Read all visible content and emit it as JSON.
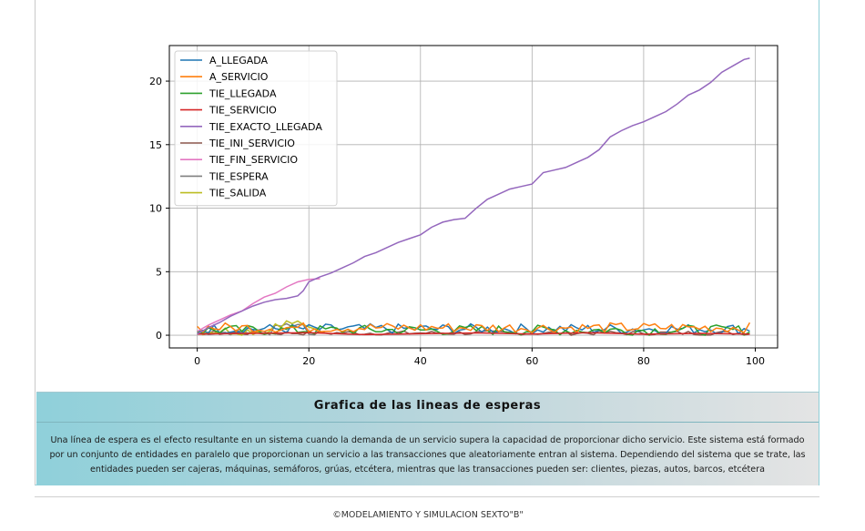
{
  "chart_data": {
    "type": "line",
    "xlim": [
      -5,
      104
    ],
    "ylim": [
      -1,
      22.8
    ],
    "x_ticks": [
      0,
      20,
      40,
      60,
      80,
      100
    ],
    "y_ticks": [
      0,
      5,
      10,
      15,
      20
    ],
    "grid": true,
    "legend_position": "top-left",
    "series": [
      {
        "name": "A_LLEGADA",
        "color": "#1f77b4"
      },
      {
        "name": "A_SERVICIO",
        "color": "#ff7f0e"
      },
      {
        "name": "TIE_LLEGADA",
        "color": "#2ca02c"
      },
      {
        "name": "TIE_SERVICIO",
        "color": "#d62728",
        "x": [
          0,
          10,
          20,
          30,
          40,
          50,
          60,
          70,
          80,
          90,
          99
        ],
        "y": [
          0.1,
          0.15,
          0.2,
          0.05,
          0.12,
          0.18,
          0.1,
          0.2,
          0.08,
          0.15,
          0.1
        ]
      },
      {
        "name": "TIE_EXACTO_LLEGADA",
        "color": "#9467bd",
        "x": [
          0,
          2,
          4,
          6,
          8,
          10,
          12,
          14,
          16,
          18,
          19,
          20,
          22,
          24,
          26,
          28,
          30,
          32,
          34,
          36,
          38,
          40,
          42,
          44,
          46,
          48,
          50,
          52,
          54,
          56,
          58,
          60,
          62,
          64,
          66,
          68,
          70,
          72,
          74,
          76,
          78,
          80,
          82,
          84,
          86,
          88,
          90,
          92,
          94,
          96,
          98,
          99
        ],
        "y": [
          0.1,
          0.6,
          1.0,
          1.5,
          1.9,
          2.3,
          2.6,
          2.8,
          2.9,
          3.1,
          3.5,
          4.2,
          4.6,
          4.9,
          5.3,
          5.7,
          6.2,
          6.5,
          6.9,
          7.3,
          7.6,
          7.9,
          8.5,
          8.9,
          9.1,
          9.2,
          10.0,
          10.7,
          11.1,
          11.5,
          11.7,
          11.9,
          12.8,
          13.0,
          13.2,
          13.6,
          14.0,
          14.6,
          15.6,
          16.1,
          16.5,
          16.8,
          17.2,
          17.6,
          18.2,
          18.9,
          19.3,
          19.9,
          20.7,
          21.2,
          21.7,
          21.8
        ]
      },
      {
        "name": "TIE_INI_SERVICIO",
        "color": "#8c564b"
      },
      {
        "name": "TIE_FIN_SERVICIO",
        "color": "#e377c2",
        "x": [
          0,
          2,
          4,
          6,
          8,
          10,
          12,
          14,
          16,
          18,
          20,
          22
        ],
        "y": [
          0.3,
          0.8,
          1.2,
          1.6,
          1.9,
          2.5,
          3.0,
          3.3,
          3.8,
          4.2,
          4.4,
          4.45
        ]
      },
      {
        "name": "TIE_ESPERA",
        "color": "#7f7f7f"
      },
      {
        "name": "TIE_SALIDA",
        "color": "#bcbd22"
      }
    ]
  },
  "card": {
    "title": "Grafica de las lineas de esperas",
    "body": "Una línea de espera es el efecto resultante en un sistema cuando la demanda de un servicio supera la capacidad de proporcionar dicho servicio. Este sistema está formado por un conjunto de entidades en paralelo que proporcionan un servicio a las transacciones que aleatoriamente entran al sistema. Dependiendo del sistema que se trate, las entidades pueden ser cajeras, máquinas, semáforos, grúas, etcétera, mientras que las transacciones pueden ser: clientes, piezas, autos, barcos, etcétera"
  },
  "footer": {
    "text": "©MODELAMIENTO Y SIMULACION SEXTO\"B\""
  }
}
